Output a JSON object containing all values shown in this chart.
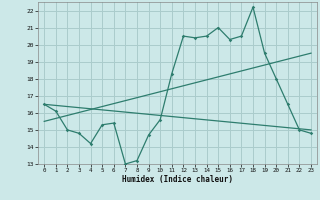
{
  "title": "",
  "xlabel": "Humidex (Indice chaleur)",
  "bg_color": "#cce8e8",
  "grid_color": "#aacccc",
  "line_color": "#2e7d6e",
  "xlim": [
    -0.5,
    23.5
  ],
  "ylim": [
    13,
    22.5
  ],
  "yticks": [
    13,
    14,
    15,
    16,
    17,
    18,
    19,
    20,
    21,
    22
  ],
  "xticks": [
    0,
    1,
    2,
    3,
    4,
    5,
    6,
    7,
    8,
    9,
    10,
    11,
    12,
    13,
    14,
    15,
    16,
    17,
    18,
    19,
    20,
    21,
    22,
    23
  ],
  "series1_x": [
    0,
    1,
    2,
    3,
    4,
    5,
    6,
    7,
    8,
    9,
    10,
    11,
    12,
    13,
    14,
    15,
    16,
    17,
    18,
    19,
    20,
    21,
    22,
    23
  ],
  "series1_y": [
    16.5,
    16.1,
    15.0,
    14.8,
    14.2,
    15.3,
    15.4,
    13.0,
    13.2,
    14.7,
    15.6,
    18.3,
    20.5,
    20.4,
    20.5,
    21.0,
    20.3,
    20.5,
    22.2,
    19.5,
    18.0,
    16.5,
    15.0,
    14.8
  ],
  "series2_x": [
    0,
    23
  ],
  "series2_y": [
    16.5,
    15.0
  ],
  "series3_x": [
    0,
    23
  ],
  "series3_y": [
    15.5,
    19.5
  ]
}
